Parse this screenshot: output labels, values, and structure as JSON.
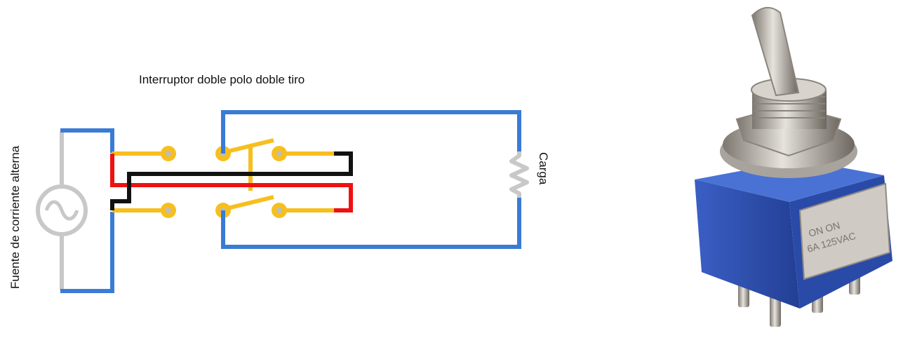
{
  "diagram": {
    "title": "Interruptor doble polo doble tiro",
    "source_label": "Fuente de corriente alterna",
    "load_label": "Carga"
  },
  "photo": {
    "marking_line1": "ON    ON",
    "marking_line2": "6A 125VAC"
  },
  "colors": {
    "blue": "#3a7bd5",
    "gray": "#c8c8c8",
    "yellow": "#f7bf1e",
    "red": "#ee1111",
    "black": "#111111",
    "switch_blue": "#2f56b8",
    "metal": "#b9b4ad"
  }
}
